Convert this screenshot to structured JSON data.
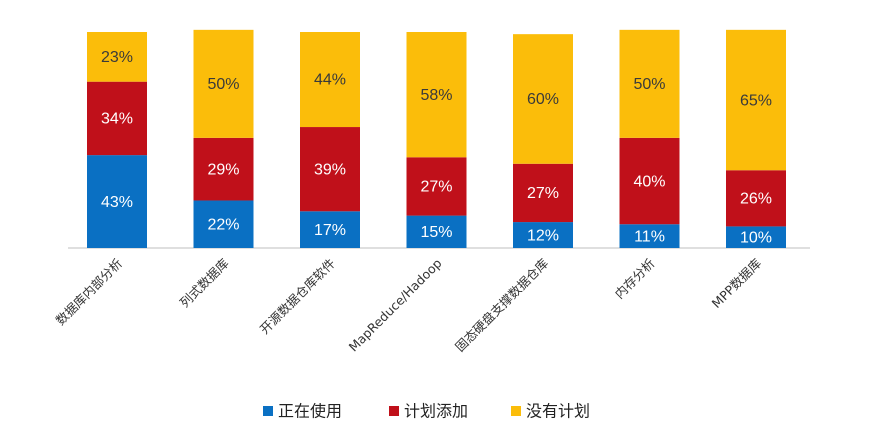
{
  "chart_data": {
    "type": "bar",
    "stacked": true,
    "percent_stacked": true,
    "categories": [
      "数据库内部分析",
      "列式数据库",
      "开源数据仓库软件",
      "MapReduce/Hadoop",
      "固态硬盘支撑数据仓库",
      "内存分析",
      "MPP数据库"
    ],
    "series": [
      {
        "name": "正在使用",
        "color": "#0a70c3",
        "values": [
          43,
          22,
          17,
          15,
          12,
          11,
          10
        ],
        "labels": [
          "43%",
          "22%",
          "17%",
          "15%",
          "12%",
          "11%",
          "10%"
        ]
      },
      {
        "name": "计划添加",
        "color": "#c0101a",
        "values": [
          34,
          29,
          39,
          27,
          27,
          40,
          26
        ],
        "labels": [
          "34%",
          "29%",
          "39%",
          "27%",
          "27%",
          "40%",
          "26%"
        ]
      },
      {
        "name": "没有计划",
        "color": "#fbbd0a",
        "values": [
          23,
          50,
          44,
          58,
          60,
          50,
          65
        ],
        "labels": [
          "23%",
          "50%",
          "44%",
          "58%",
          "60%",
          "50%",
          "65%"
        ]
      }
    ],
    "ylim": [
      0,
      100
    ],
    "grid": false,
    "legend_position": "bottom",
    "title": "",
    "xlabel": "",
    "ylabel": ""
  }
}
